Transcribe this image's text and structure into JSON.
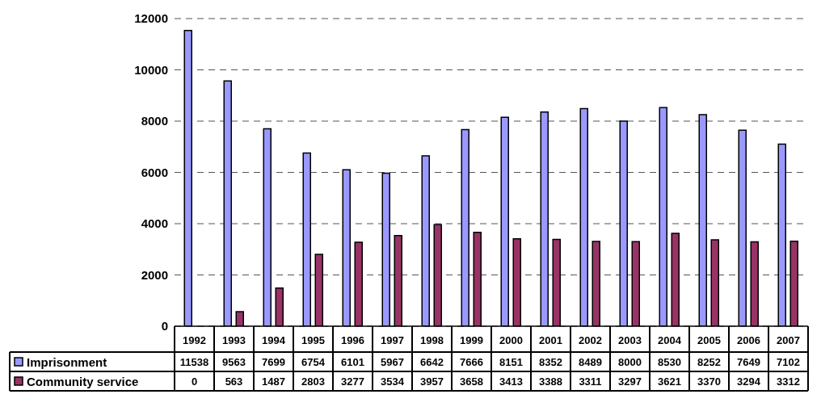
{
  "chart_data": {
    "type": "bar",
    "categories": [
      "1992",
      "1993",
      "1994",
      "1995",
      "1996",
      "1997",
      "1998",
      "1999",
      "2000",
      "2001",
      "2002",
      "2003",
      "2004",
      "2005",
      "2006",
      "2007"
    ],
    "series": [
      {
        "name": "Imprisonment",
        "color": "#9999ff",
        "values": [
          11538,
          9563,
          7699,
          6754,
          6101,
          5967,
          6642,
          7666,
          8151,
          8352,
          8489,
          8000,
          8530,
          8252,
          7649,
          7102
        ]
      },
      {
        "name": "Community service",
        "color": "#993366",
        "values": [
          0,
          563,
          1487,
          2803,
          3277,
          3534,
          3957,
          3658,
          3413,
          3388,
          3311,
          3297,
          3621,
          3370,
          3294,
          3312
        ]
      }
    ],
    "ylim": [
      0,
      12000
    ],
    "yticks": [
      0,
      2000,
      4000,
      6000,
      8000,
      10000,
      12000
    ],
    "grid": "y",
    "legend": "bottom",
    "data_labels": true
  }
}
